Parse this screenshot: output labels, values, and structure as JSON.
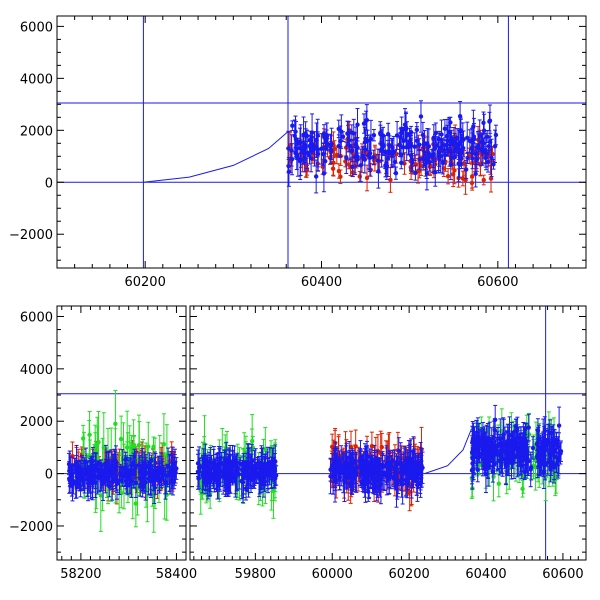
{
  "chart_data": [
    {
      "type": "scatter",
      "title": "",
      "xlabel": "",
      "ylabel": "",
      "xlim": [
        60100,
        60700
      ],
      "ylim": [
        -3300,
        6400
      ],
      "x_ticks": [
        60200,
        60400,
        60600
      ],
      "y_ticks": [
        -2000,
        0,
        2000,
        4000,
        6000
      ],
      "x_tick_labels": [
        "60200",
        "60400",
        "60600"
      ],
      "y_tick_labels": [
        "−2000",
        "0",
        "2000",
        "4000",
        "6000"
      ],
      "reference_lines": {
        "horizontal_y": [
          0,
          3050
        ],
        "vertical_x": [
          60198,
          60362,
          60612
        ]
      },
      "model_curve": {
        "description_points": [
          [
            60198,
            0
          ],
          [
            60250,
            200
          ],
          [
            60300,
            650
          ],
          [
            60340,
            1300
          ],
          [
            60362,
            1950
          ]
        ]
      },
      "series": [
        {
          "color": "#dd2200",
          "segments": [
            {
              "x_range": [
                60362,
                60598
              ],
              "n": 120,
              "y_center": 900,
              "y_spread": 1400,
              "err": 350
            }
          ]
        },
        {
          "color": "#1a1aee",
          "segments": [
            {
              "x_range": [
                60362,
                60598
              ],
              "n": 260,
              "y_center": 1400,
              "y_spread": 1500,
              "err": 450
            }
          ]
        }
      ]
    },
    {
      "type": "scatter",
      "title": "",
      "xlabel": "",
      "ylabel": "",
      "ylim": [
        -3300,
        6400
      ],
      "y_ticks": [
        -2000,
        0,
        2000,
        4000,
        6000
      ],
      "y_tick_labels": [
        "−2000",
        "0",
        "2000",
        "4000",
        "6000"
      ],
      "x_ticks": [
        58200,
        58400,
        59800,
        60000,
        60200,
        60400,
        60600
      ],
      "x_tick_labels": [
        "58200",
        "58400",
        "59800",
        "60000",
        "60200",
        "60400",
        "60600"
      ],
      "axis_breaks": [
        {
          "xlim": [
            58150,
            58420
          ]
        },
        {
          "xlim": [
            59630,
            60660
          ]
        }
      ],
      "reference_lines": {
        "horizontal_y": [
          0,
          3050
        ],
        "vertical_x": [
          60555
        ]
      },
      "model_curve": {
        "description_points": [
          [
            60240,
            0
          ],
          [
            60300,
            300
          ],
          [
            60340,
            900
          ],
          [
            60362,
            1700
          ]
        ]
      },
      "series": [
        {
          "color": "#dd2200",
          "segments": [
            {
              "x_range": [
                58175,
                58400
              ],
              "n": 90,
              "y_center": 100,
              "y_spread": 900,
              "err": 500
            },
            {
              "x_range": [
                59995,
                60235
              ],
              "n": 100,
              "y_center": 300,
              "y_spread": 1300,
              "err": 550
            }
          ]
        },
        {
          "color": "#22dd22",
          "segments": [
            {
              "x_range": [
                58200,
                58390
              ],
              "n": 70,
              "y_center": 400,
              "y_spread": 2200,
              "err": 900
            },
            {
              "x_range": [
                59650,
                59855
              ],
              "n": 70,
              "y_center": 300,
              "y_spread": 1600,
              "err": 700
            },
            {
              "x_range": [
                60362,
                60595
              ],
              "n": 90,
              "y_center": 700,
              "y_spread": 1700,
              "err": 600
            }
          ]
        },
        {
          "color": "#1a1aee",
          "segments": [
            {
              "x_range": [
                58175,
                58400
              ],
              "n": 220,
              "y_center": 0,
              "y_spread": 700,
              "err": 450
            },
            {
              "x_range": [
                59650,
                59855
              ],
              "n": 200,
              "y_center": 100,
              "y_spread": 700,
              "err": 500
            },
            {
              "x_range": [
                59995,
                60235
              ],
              "n": 220,
              "y_center": 100,
              "y_spread": 800,
              "err": 500
            },
            {
              "x_range": [
                60362,
                60595
              ],
              "n": 240,
              "y_center": 900,
              "y_spread": 1300,
              "err": 500
            }
          ]
        }
      ]
    }
  ]
}
